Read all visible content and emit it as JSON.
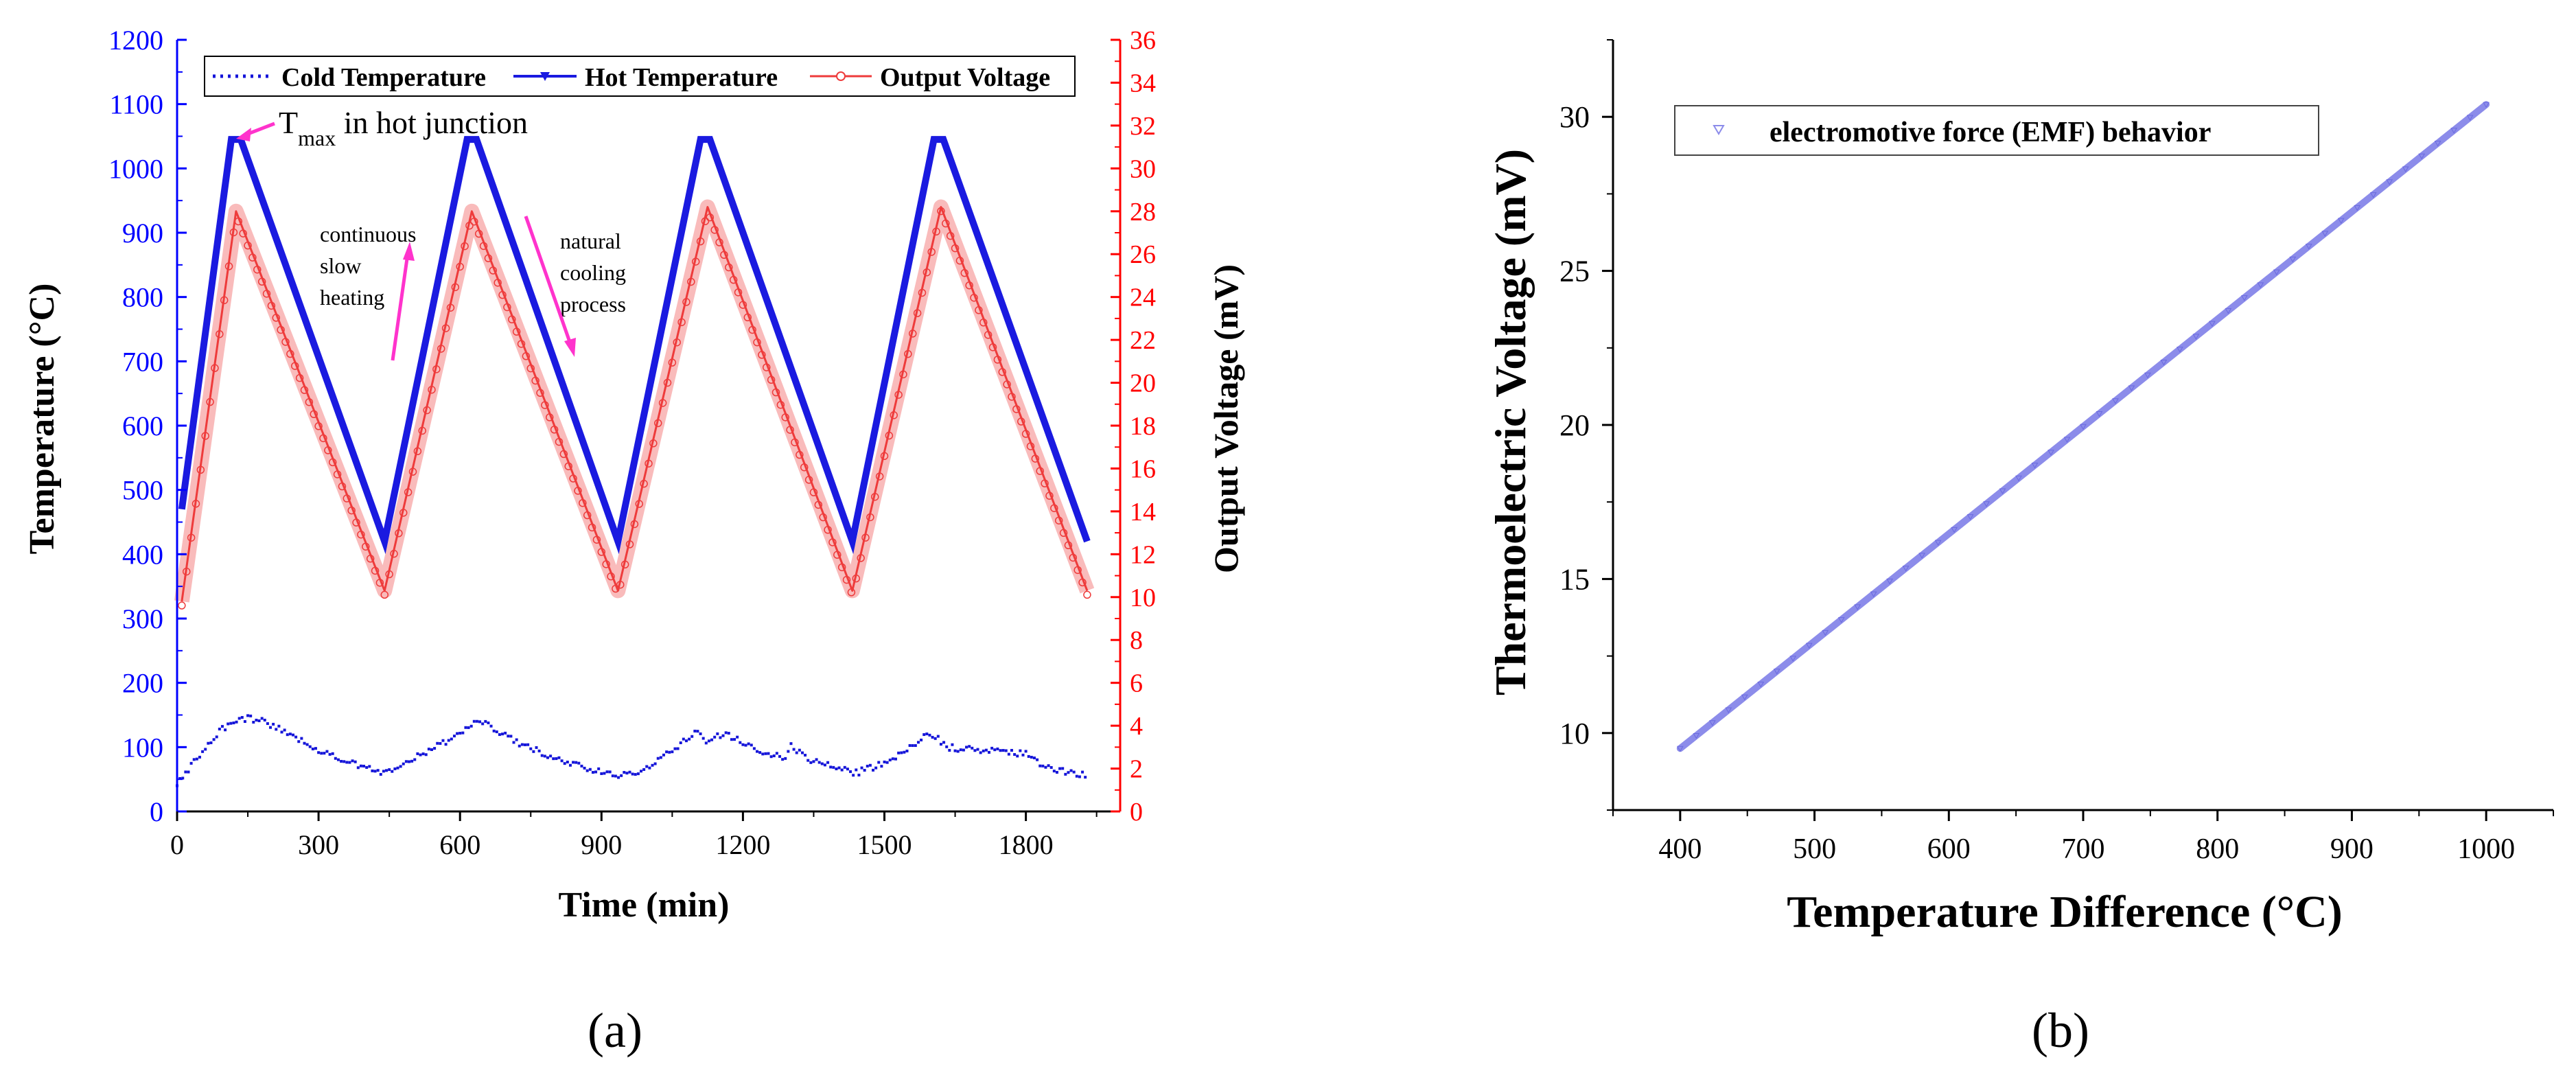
{
  "colors": {
    "cold": "#1515d9",
    "hot": "#1a1ae0",
    "voltage": "#ee3b3b",
    "arrow": "#ff33cc",
    "emf": "#8c8cea",
    "black": "#000000",
    "left_axis": "#0000ff",
    "right_axis": "#ff0000"
  },
  "panel_a_label": "(a)",
  "panel_b_label": "(b)",
  "chart_data": [
    {
      "id": "a",
      "type": "line",
      "xlabel": "Time (min)",
      "ylabel": "Temperature (°C)",
      "y2label": "Output Voltage (mV)",
      "xlim": [
        0,
        2000
      ],
      "ylim": [
        0,
        1200
      ],
      "y2lim": [
        0,
        36
      ],
      "xticks": [
        "0",
        "300",
        "600",
        "900",
        "1200",
        "1500",
        "1800"
      ],
      "xtick_values": [
        0,
        300,
        600,
        900,
        1200,
        1500,
        1800
      ],
      "yticks": [
        "0",
        "100",
        "200",
        "300",
        "400",
        "500",
        "600",
        "700",
        "800",
        "900",
        "1000",
        "1100",
        "1200"
      ],
      "ytick_values": [
        0,
        100,
        200,
        300,
        400,
        500,
        600,
        700,
        800,
        900,
        1000,
        1100,
        1200
      ],
      "y2ticks": [
        "0",
        "2",
        "4",
        "6",
        "8",
        "10",
        "12",
        "14",
        "16",
        "18",
        "20",
        "22",
        "24",
        "26",
        "28",
        "30",
        "32",
        "34",
        "36"
      ],
      "y2tick_values": [
        0,
        2,
        4,
        6,
        8,
        10,
        12,
        14,
        16,
        18,
        20,
        22,
        24,
        26,
        28,
        30,
        32,
        34,
        36
      ],
      "legend": [
        "Cold Temperature",
        "Hot Temperature",
        "Output Voltage"
      ],
      "legend_position": "top",
      "annotations": {
        "tmax_main": "T",
        "tmax_sub": "max",
        "tmax_rest": " in hot junction",
        "heating": [
          "continuous",
          "slow",
          "heating"
        ],
        "cooling": [
          "natural",
          "cooling",
          "process"
        ]
      },
      "series": [
        {
          "name": "Cold Temperature",
          "axis": "left",
          "x": [
            0,
            30,
            60,
            90,
            120,
            150,
            180,
            210,
            250,
            300,
            350,
            400,
            440,
            480,
            520,
            560,
            600,
            630,
            660,
            700,
            760,
            820,
            880,
            930,
            980,
            1020,
            1060,
            1100,
            1120,
            1150,
            1180,
            1220,
            1260,
            1290,
            1300,
            1340,
            1400,
            1440,
            1480,
            1520,
            1560,
            1590,
            1610,
            1630,
            1660,
            1700,
            1760,
            1800,
            1830,
            1880,
            1930
          ],
          "y": [
            45,
            70,
            100,
            125,
            140,
            145,
            140,
            130,
            115,
            95,
            80,
            68,
            60,
            72,
            90,
            105,
            120,
            138,
            135,
            115,
            95,
            80,
            65,
            55,
            62,
            80,
            100,
            125,
            110,
            120,
            115,
            98,
            88,
            82,
            105,
            80,
            68,
            60,
            70,
            85,
            100,
            125,
            115,
            100,
            98,
            95,
            92,
            90,
            72,
            62,
            55
          ]
        },
        {
          "name": "Hot Temperature",
          "axis": "left",
          "x": [
            10,
            115,
            135,
            440,
            615,
            635,
            935,
            1110,
            1130,
            1432,
            1605,
            1625,
            1930
          ],
          "y": [
            470,
            1045,
            1045,
            420,
            1045,
            1045,
            420,
            1045,
            1045,
            420,
            1045,
            1045,
            420
          ]
        },
        {
          "name": "Output Voltage",
          "axis": "right",
          "x": [
            10,
            125,
            440,
            625,
            935,
            1125,
            1432,
            1620,
            1930
          ],
          "y": [
            9.8,
            28.0,
            10.3,
            28.0,
            10.3,
            28.2,
            10.3,
            28.2,
            10.3
          ]
        }
      ]
    },
    {
      "id": "b",
      "type": "scatter",
      "xlabel": "Temperature Difference (°C)",
      "ylabel": "Thermoelectric Voltage (mV)",
      "xlim": [
        350,
        1050
      ],
      "ylim": [
        7.5,
        32.5
      ],
      "xticks": [
        "400",
        "500",
        "600",
        "700",
        "800",
        "900",
        "1000"
      ],
      "xtick_values": [
        400,
        500,
        600,
        700,
        800,
        900,
        1000
      ],
      "yticks": [
        "10",
        "15",
        "20",
        "25",
        "30"
      ],
      "ytick_values": [
        10,
        15,
        20,
        25,
        30
      ],
      "legend": [
        "electromotive force (EMF) behavior"
      ],
      "legend_position": "top-left",
      "series": [
        {
          "name": "electromotive force (EMF) behavior",
          "x": [
            400,
            1000
          ],
          "y": [
            9.5,
            30.4
          ]
        }
      ]
    }
  ]
}
